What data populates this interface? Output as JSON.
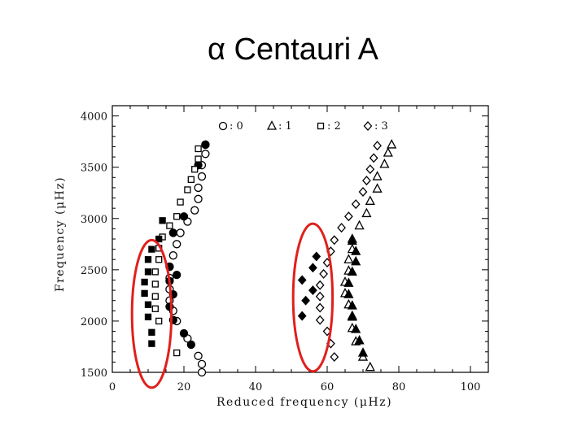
{
  "slide": {
    "title": "α Centauri A"
  },
  "chart_data": {
    "type": "scatter",
    "title": "",
    "xlabel": "Reduced frequency (μHz)",
    "ylabel": "Frequency (μHz)",
    "xlim": [
      0,
      105
    ],
    "ylim": [
      1500,
      4100
    ],
    "xticks": [
      "0",
      "20",
      "40",
      "60",
      "80",
      "100"
    ],
    "yticks": [
      "1500",
      "2000",
      "2500",
      "3000",
      "3500",
      "4000"
    ],
    "grid": false,
    "legend_position": "top",
    "legend": [
      {
        "symbol": "○",
        "text": ": 0"
      },
      {
        "symbol": "△",
        "text": ": 1"
      },
      {
        "symbol": "□",
        "text": ": 2"
      },
      {
        "symbol": "◇",
        "text": ": 3"
      }
    ],
    "series": [
      {
        "l": 0,
        "marker": "circle",
        "filled": false,
        "points": [
          [
            25,
            1500
          ],
          [
            25,
            1580
          ],
          [
            24,
            1660
          ],
          [
            21,
            1830
          ],
          [
            18,
            2000
          ],
          [
            17,
            2100
          ],
          [
            16,
            2200
          ],
          [
            16,
            2310
          ],
          [
            16,
            2420
          ],
          [
            16,
            2530
          ],
          [
            17,
            2640
          ],
          [
            18,
            2750
          ],
          [
            19,
            2860
          ],
          [
            21,
            2970
          ],
          [
            23,
            3080
          ],
          [
            24,
            3190
          ],
          [
            24,
            3300
          ],
          [
            25,
            3410
          ],
          [
            25,
            3520
          ],
          [
            26,
            3630
          ],
          [
            26,
            3720
          ]
        ]
      },
      {
        "l": 0,
        "marker": "circle",
        "filled": true,
        "points": [
          [
            22,
            1770
          ],
          [
            20,
            1880
          ],
          [
            17,
            2010
          ],
          [
            16,
            2140
          ],
          [
            17,
            2260
          ],
          [
            16,
            2390
          ],
          [
            18,
            2450
          ],
          [
            16,
            2530
          ],
          [
            17,
            2860
          ],
          [
            20,
            3020
          ],
          [
            24,
            3520
          ],
          [
            26,
            3720
          ]
        ]
      },
      {
        "l": 2,
        "marker": "square",
        "filled": false,
        "points": [
          [
            18,
            1690
          ],
          [
            13,
            2000
          ],
          [
            12,
            2120
          ],
          [
            12,
            2240
          ],
          [
            12,
            2360
          ],
          [
            12,
            2480
          ],
          [
            13,
            2600
          ],
          [
            13,
            2710
          ],
          [
            14,
            2820
          ],
          [
            16,
            2930
          ],
          [
            18,
            3020
          ],
          [
            19,
            3160
          ],
          [
            21,
            3280
          ],
          [
            22,
            3380
          ],
          [
            23,
            3480
          ],
          [
            24,
            3580
          ],
          [
            24,
            3680
          ]
        ]
      },
      {
        "l": 2,
        "marker": "square",
        "filled": true,
        "points": [
          [
            11,
            1780
          ],
          [
            11,
            1890
          ],
          [
            10,
            2040
          ],
          [
            10,
            2160
          ],
          [
            9,
            2270
          ],
          [
            9,
            2380
          ],
          [
            10,
            2480
          ],
          [
            10,
            2600
          ],
          [
            11,
            2700
          ],
          [
            13,
            2800
          ],
          [
            14,
            2980
          ]
        ]
      },
      {
        "l": 1,
        "marker": "triangle",
        "filled": false,
        "points": [
          [
            72,
            1550
          ],
          [
            70,
            1650
          ],
          [
            68,
            1800
          ],
          [
            67,
            1930
          ],
          [
            67,
            2050
          ],
          [
            66,
            2160
          ],
          [
            65,
            2270
          ],
          [
            65,
            2380
          ],
          [
            66,
            2490
          ],
          [
            66,
            2600
          ],
          [
            67,
            2700
          ],
          [
            67,
            2800
          ],
          [
            69,
            2930
          ],
          [
            71,
            3050
          ],
          [
            72,
            3170
          ],
          [
            74,
            3290
          ],
          [
            74,
            3410
          ],
          [
            76,
            3530
          ],
          [
            77,
            3640
          ],
          [
            78,
            3720
          ]
        ]
      },
      {
        "l": 1,
        "marker": "triangle",
        "filled": true,
        "points": [
          [
            70,
            1690
          ],
          [
            69,
            1810
          ],
          [
            68,
            1920
          ],
          [
            67,
            2040
          ],
          [
            67,
            2150
          ],
          [
            66,
            2260
          ],
          [
            66,
            2370
          ],
          [
            67,
            2480
          ],
          [
            68,
            2580
          ],
          [
            68,
            2680
          ],
          [
            67,
            2780
          ]
        ]
      },
      {
        "l": 3,
        "marker": "diamond",
        "filled": false,
        "points": [
          [
            62,
            1650
          ],
          [
            61,
            1780
          ],
          [
            60,
            1900
          ],
          [
            58,
            2010
          ],
          [
            58,
            2130
          ],
          [
            58,
            2240
          ],
          [
            58,
            2350
          ],
          [
            59,
            2460
          ],
          [
            60,
            2570
          ],
          [
            61,
            2680
          ],
          [
            62,
            2790
          ],
          [
            64,
            2910
          ],
          [
            66,
            3020
          ],
          [
            68,
            3140
          ],
          [
            70,
            3260
          ],
          [
            71,
            3370
          ],
          [
            72,
            3480
          ],
          [
            73,
            3590
          ],
          [
            74,
            3710
          ]
        ]
      },
      {
        "l": 3,
        "marker": "diamond",
        "filled": true,
        "points": [
          [
            53,
            2050
          ],
          [
            54,
            2200
          ],
          [
            53,
            2400
          ],
          [
            56,
            2300
          ],
          [
            56,
            2520
          ],
          [
            57,
            2630
          ]
        ]
      }
    ],
    "annotations": [
      {
        "type": "ellipse",
        "color": "#e0201c",
        "cx": 11,
        "cy": 2070,
        "rx": 5.5,
        "ry": 720
      },
      {
        "type": "ellipse",
        "color": "#e0201c",
        "cx": 56,
        "cy": 2230,
        "rx": 5.5,
        "ry": 720
      }
    ]
  }
}
